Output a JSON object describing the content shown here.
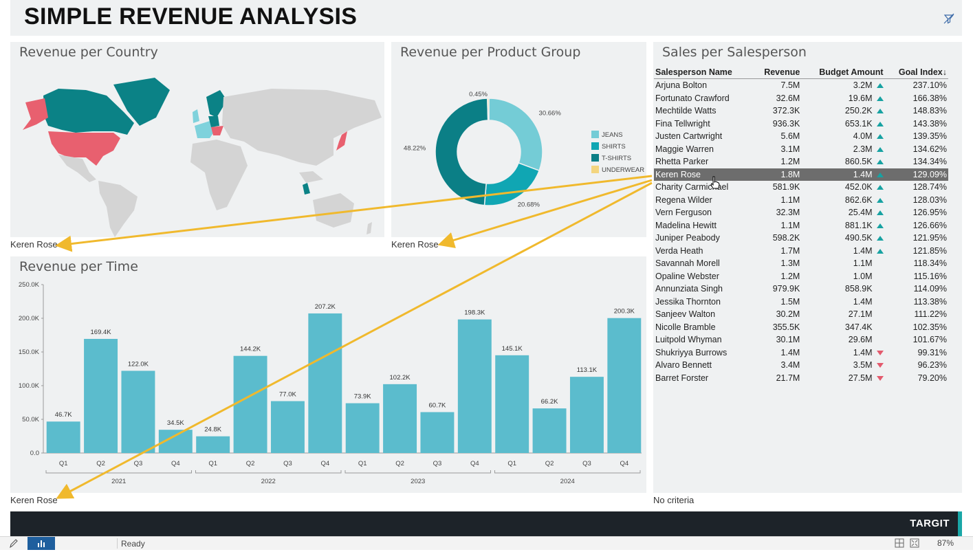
{
  "header": {
    "title": "SIMPLE REVENUE ANALYSIS",
    "filter_icon": "filter-off-icon"
  },
  "panels": {
    "country": {
      "title": "Revenue per Country",
      "criteria": "Keren Rose"
    },
    "product": {
      "title": "Revenue per Product Group",
      "criteria": "Keren Rose"
    },
    "time": {
      "title": "Revenue per Time",
      "criteria": "Keren Rose"
    },
    "sales": {
      "title": "Sales per Salesperson",
      "criteria": "No criteria"
    }
  },
  "donut": {
    "slices": [
      {
        "name": "JEANS",
        "value": 30.66,
        "label": "30.66%",
        "color": "#74ccd6"
      },
      {
        "name": "SHIRTS",
        "value": 20.68,
        "label": "20.68%",
        "color": "#10a6b3"
      },
      {
        "name": "T-SHIRTS",
        "value": 48.22,
        "label": "48.22%",
        "color": "#0b7f86"
      },
      {
        "name": "UNDERWEAR",
        "value": 0.45,
        "label": "0.45%",
        "color": "#f3d57f"
      }
    ]
  },
  "chart_data": {
    "type": "bar",
    "groups": [
      "2021",
      "2022",
      "2023",
      "2024"
    ],
    "categories": [
      "Q1",
      "Q2",
      "Q3",
      "Q4",
      "Q1",
      "Q2",
      "Q3",
      "Q4",
      "Q1",
      "Q2",
      "Q3",
      "Q4",
      "Q1",
      "Q2",
      "Q3",
      "Q4"
    ],
    "values": [
      46.7,
      169.4,
      122.0,
      34.5,
      24.8,
      144.2,
      77.0,
      207.2,
      73.9,
      102.2,
      60.7,
      198.3,
      145.1,
      66.2,
      113.1,
      200.3
    ],
    "labels": [
      "46.7K",
      "169.4K",
      "122.0K",
      "34.5K",
      "24.8K",
      "144.2K",
      "77.0K",
      "207.2K",
      "73.9K",
      "102.2K",
      "60.7K",
      "198.3K",
      "145.1K",
      "66.2K",
      "113.1K",
      "200.3K"
    ],
    "yticks": [
      0,
      50,
      100,
      150,
      200,
      250
    ],
    "ytick_labels": [
      "0.0",
      "50.0K",
      "100.0K",
      "150.0K",
      "200.0K",
      "250.0K"
    ],
    "ylim": [
      0,
      250
    ],
    "bar_color": "#5bbccd",
    "unit": "K"
  },
  "table": {
    "headers": [
      "Salesperson Name",
      "Revenue",
      "Budget Amount",
      "Goal Index↓"
    ],
    "selected": "Keren Rose",
    "rows": [
      {
        "name": "Arjuna Bolton",
        "revenue": "7.5M",
        "budget": "3.2M",
        "trend": "up",
        "goal": "237.10%"
      },
      {
        "name": "Fortunato Crawford",
        "revenue": "32.6M",
        "budget": "19.6M",
        "trend": "up",
        "goal": "166.38%"
      },
      {
        "name": "Mechtilde Watts",
        "revenue": "372.3K",
        "budget": "250.2K",
        "trend": "up",
        "goal": "148.83%"
      },
      {
        "name": "Fina Tellwright",
        "revenue": "936.3K",
        "budget": "653.1K",
        "trend": "up",
        "goal": "143.38%"
      },
      {
        "name": "Justen Cartwright",
        "revenue": "5.6M",
        "budget": "4.0M",
        "trend": "up",
        "goal": "139.35%"
      },
      {
        "name": "Maggie Warren",
        "revenue": "3.1M",
        "budget": "2.3M",
        "trend": "up",
        "goal": "134.62%"
      },
      {
        "name": "Rhetta Parker",
        "revenue": "1.2M",
        "budget": "860.5K",
        "trend": "up",
        "goal": "134.34%"
      },
      {
        "name": "Keren Rose",
        "revenue": "1.8M",
        "budget": "1.4M",
        "trend": "up",
        "goal": "129.09%"
      },
      {
        "name": "Charity Carmichael",
        "revenue": "581.9K",
        "budget": "452.0K",
        "trend": "up",
        "goal": "128.74%"
      },
      {
        "name": "Regena Wilder",
        "revenue": "1.1M",
        "budget": "862.6K",
        "trend": "up",
        "goal": "128.03%"
      },
      {
        "name": "Vern Ferguson",
        "revenue": "32.3M",
        "budget": "25.4M",
        "trend": "up",
        "goal": "126.95%"
      },
      {
        "name": "Madelina Hewitt",
        "revenue": "1.1M",
        "budget": "881.1K",
        "trend": "up",
        "goal": "126.66%"
      },
      {
        "name": "Juniper Peabody",
        "revenue": "598.2K",
        "budget": "490.5K",
        "trend": "up",
        "goal": "121.95%"
      },
      {
        "name": "Verda Heath",
        "revenue": "1.7M",
        "budget": "1.4M",
        "trend": "up",
        "goal": "121.85%"
      },
      {
        "name": "Savannah Morell",
        "revenue": "1.3M",
        "budget": "1.1M",
        "trend": "none",
        "goal": "118.34%"
      },
      {
        "name": "Opaline Webster",
        "revenue": "1.2M",
        "budget": "1.0M",
        "trend": "none",
        "goal": "115.16%"
      },
      {
        "name": "Annunziata Singh",
        "revenue": "979.9K",
        "budget": "858.9K",
        "trend": "none",
        "goal": "114.09%"
      },
      {
        "name": "Jessika Thornton",
        "revenue": "1.5M",
        "budget": "1.4M",
        "trend": "none",
        "goal": "113.38%"
      },
      {
        "name": "Sanjeev Walton",
        "revenue": "30.2M",
        "budget": "27.1M",
        "trend": "none",
        "goal": "111.22%"
      },
      {
        "name": "Nicolle Bramble",
        "revenue": "355.5K",
        "budget": "347.4K",
        "trend": "none",
        "goal": "102.35%"
      },
      {
        "name": "Luitpold Whyman",
        "revenue": "30.1M",
        "budget": "29.6M",
        "trend": "none",
        "goal": "101.67%"
      },
      {
        "name": "Shukriyya Burrows",
        "revenue": "1.4M",
        "budget": "1.4M",
        "trend": "down",
        "goal": "99.31%"
      },
      {
        "name": "Alvaro Bennett",
        "revenue": "3.4M",
        "budget": "3.5M",
        "trend": "down",
        "goal": "96.23%"
      },
      {
        "name": "Barret Forster",
        "revenue": "21.7M",
        "budget": "27.5M",
        "trend": "down",
        "goal": "79.20%"
      }
    ]
  },
  "colors": {
    "highlight_country": "#e8606f",
    "country_teal": "#0b8286",
    "country_light": "#7fd2dc",
    "arrow": "#f0b92d"
  },
  "footer": {
    "logo": "TARGIT"
  },
  "statusbar": {
    "status": "Ready",
    "zoom": "87%"
  }
}
